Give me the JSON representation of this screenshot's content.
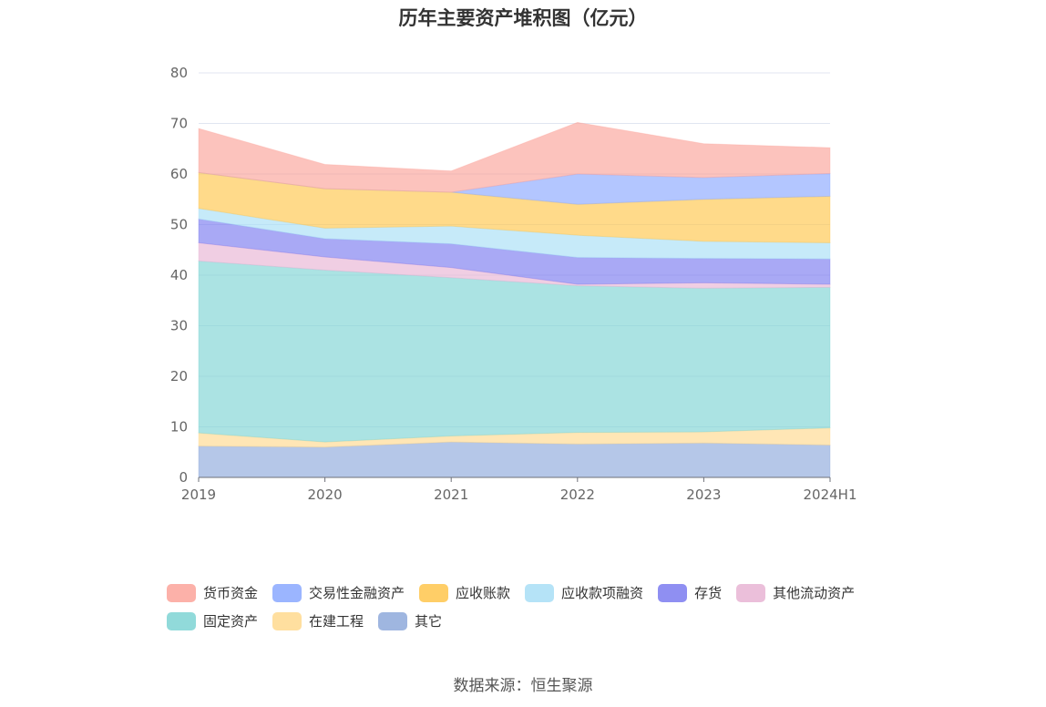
{
  "title": "历年主要资产堆积图（亿元）",
  "source": "数据来源：恒生聚源",
  "chart_data": {
    "type": "area",
    "stacked": true,
    "title": "历年主要资产堆积图（亿元）",
    "xlabel": "",
    "ylabel": "",
    "categories": [
      "2019",
      "2020",
      "2021",
      "2022",
      "2023",
      "2024H1"
    ],
    "ylim": [
      0,
      80
    ],
    "yticks": [
      0,
      10,
      20,
      30,
      40,
      50,
      60,
      70,
      80
    ],
    "grid": true,
    "legend_position": "bottom",
    "series": [
      {
        "name": "其它",
        "color": "#8EA9DB",
        "values": [
          6.2,
          6.0,
          7.0,
          6.6,
          6.8,
          6.4
        ]
      },
      {
        "name": "在建工程",
        "color": "#FFD98E",
        "values": [
          2.6,
          1.0,
          1.2,
          2.3,
          2.2,
          3.4
        ]
      },
      {
        "name": "固定资产",
        "color": "#7ED4D4",
        "values": [
          34.0,
          34.0,
          31.3,
          29.0,
          28.4,
          27.8
        ]
      },
      {
        "name": "其他流动资产",
        "color": "#E8B4D4",
        "values": [
          3.6,
          2.6,
          2.0,
          0.3,
          1.1,
          0.6
        ]
      },
      {
        "name": "存货",
        "color": "#7B7BF0",
        "values": [
          4.7,
          3.6,
          4.7,
          5.3,
          4.8,
          5.0
        ]
      },
      {
        "name": "应收款项融资",
        "color": "#A8DEF6",
        "values": [
          2.1,
          2.1,
          3.5,
          4.4,
          3.4,
          3.2
        ]
      },
      {
        "name": "应收账款",
        "color": "#FFC64C",
        "values": [
          7.1,
          7.8,
          6.7,
          6.1,
          8.3,
          9.2
        ]
      },
      {
        "name": "交易性金融资产",
        "color": "#8AA8FF",
        "values": [
          0,
          0,
          0,
          6.0,
          4.3,
          4.5
        ]
      },
      {
        "name": "货币资金",
        "color": "#FBA39A",
        "values": [
          8.7,
          4.8,
          4.2,
          10.2,
          6.7,
          5.1
        ]
      }
    ]
  },
  "legend_order": [
    "货币资金",
    "交易性金融资产",
    "应收账款",
    "应收款项融资",
    "存货",
    "其他流动资产",
    "固定资产",
    "在建工程",
    "其它"
  ]
}
